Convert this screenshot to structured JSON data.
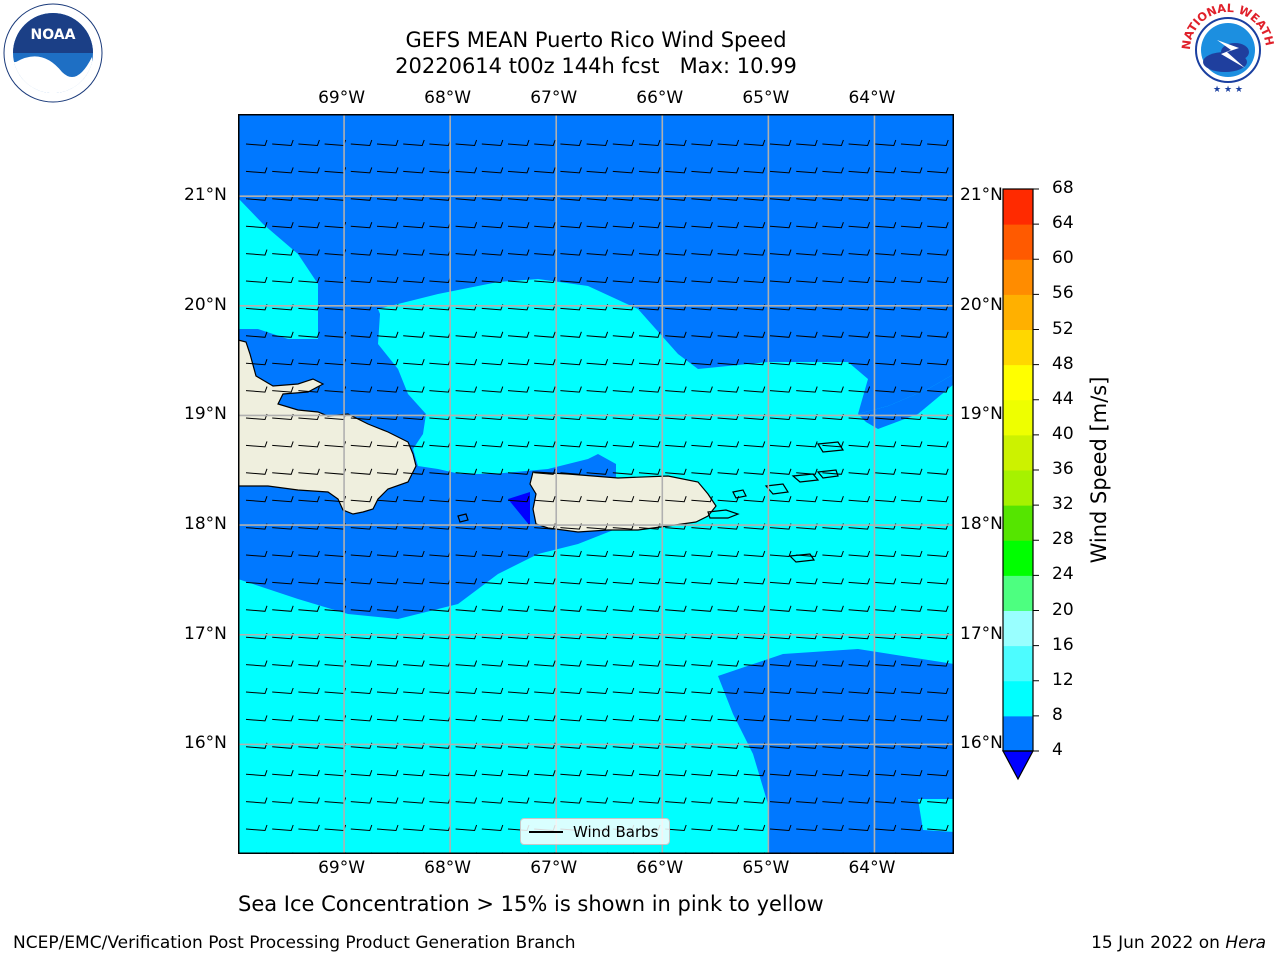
{
  "title": {
    "line1": "GEFS MEAN Puerto Rico Wind Speed",
    "line2": "20220614 t00z 144h fcst   Max: 10.99"
  },
  "logos": {
    "noaa": {
      "name": "noaa-logo",
      "text": "NOAA"
    },
    "nws": {
      "name": "nws-logo",
      "text": "NATIONAL WEATHER SERVICE"
    }
  },
  "map": {
    "region": "Puerto Rico",
    "lon_range": [
      -70.0,
      -63.25
    ],
    "lat_range": [
      15.0,
      21.75
    ],
    "lon_ticks": [
      "69°W",
      "68°W",
      "67°W",
      "66°W",
      "65°W",
      "64°W"
    ],
    "lat_ticks": [
      "21°N",
      "20°N",
      "19°N",
      "18°N",
      "17°N",
      "16°N"
    ],
    "ocean_color_low": "#0078ff",
    "ocean_color_mid": "#00ffff",
    "land_color": "#efefde",
    "calm_color": "#0000ff",
    "barb_color": "#000000",
    "gridline_color": "#b0b0b0"
  },
  "legend": {
    "label": "Wind Barbs"
  },
  "colorbar": {
    "title": "Wind Speed [m/s]",
    "levels": [
      "4",
      "8",
      "12",
      "16",
      "20",
      "24",
      "28",
      "32",
      "36",
      "40",
      "44",
      "48",
      "52",
      "56",
      "60",
      "64",
      "68"
    ],
    "colors": [
      "#0078ff",
      "#00ffff",
      "#4dfcff",
      "#99ffff",
      "#4dff80",
      "#00ff00",
      "#55e500",
      "#a6f200",
      "#ccf200",
      "#eeff00",
      "#ffff00",
      "#ffd700",
      "#ffb000",
      "#ff8c00",
      "#ff5a00",
      "#ff2a00"
    ],
    "under_color": "#0000ff"
  },
  "caption": "Sea Ice Concentration > 15% is shown in pink to yellow",
  "footer": {
    "left": "NCEP/EMC/Verification Post Processing Product Generation Branch",
    "right_date": "15 Jun 2022 on ",
    "right_host": "Hera"
  }
}
